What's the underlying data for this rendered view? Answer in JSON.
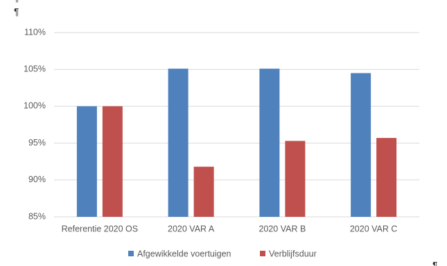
{
  "pilcrows": [
    "¶",
    "¶",
    "¶"
  ],
  "chart_data": {
    "type": "bar",
    "categories": [
      "Referentie 2020 OS",
      "2020 VAR A",
      "2020 VAR B",
      "2020 VAR C"
    ],
    "series": [
      {
        "name": "Afgewikkelde voertuigen",
        "color": "#4f81bd",
        "values": [
          100,
          105.1,
          105.1,
          104.5
        ]
      },
      {
        "name": "Verblijfsduur",
        "color": "#c0504d",
        "values": [
          100,
          91.8,
          95.3,
          95.7
        ]
      }
    ],
    "ylim": [
      85,
      110
    ],
    "yticks": [
      {
        "value": 85,
        "label": "85%"
      },
      {
        "value": 90,
        "label": "90%"
      },
      {
        "value": 95,
        "label": "95%"
      },
      {
        "value": 100,
        "label": "100%"
      },
      {
        "value": 105,
        "label": "105%"
      },
      {
        "value": 110,
        "label": "110%"
      }
    ],
    "grid": true,
    "legend": "bottom"
  }
}
